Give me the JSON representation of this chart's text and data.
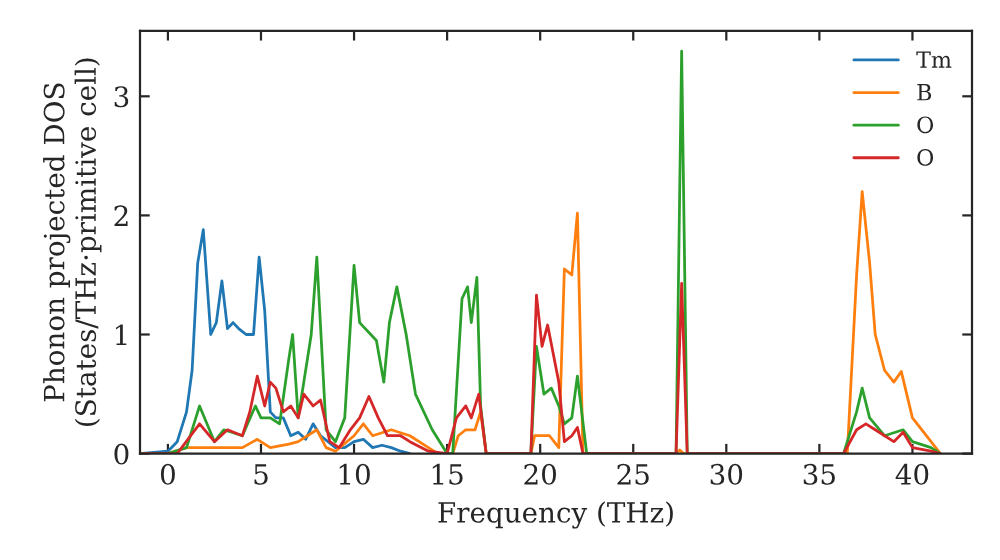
{
  "chart_data": {
    "type": "line",
    "xlabel": "Frequency (THz)",
    "ylabel": "Phonon projected DOS\n(States/THz·primitive cell)",
    "xlim": [
      -1.5,
      43.2
    ],
    "ylim": [
      0,
      3.55
    ],
    "xticks": [
      0,
      5,
      10,
      15,
      20,
      25,
      30,
      35,
      40
    ],
    "yticks": [
      0,
      1,
      2,
      3
    ],
    "grid": false,
    "legend": "top right",
    "marker": "none",
    "line_style": "solid",
    "series": [
      {
        "name": "Tm",
        "color": "#1f77b4",
        "x": [
          -1.5,
          0,
          0.5,
          1,
          1.3,
          1.6,
          1.9,
          2.3,
          2.6,
          2.9,
          3.2,
          3.5,
          3.8,
          4.2,
          4.6,
          4.9,
          5.2,
          5.5,
          5.8,
          6.2,
          6.6,
          7,
          7.4,
          7.8,
          8.2,
          8.6,
          9,
          9.5,
          10,
          10.5,
          11,
          11.5,
          12,
          12.5,
          13
        ],
        "values": [
          0,
          0.02,
          0.1,
          0.35,
          0.7,
          1.6,
          1.88,
          1.0,
          1.1,
          1.45,
          1.05,
          1.1,
          1.05,
          1.0,
          1.0,
          1.65,
          1.2,
          0.35,
          0.3,
          0.3,
          0.15,
          0.18,
          0.12,
          0.25,
          0.15,
          0.1,
          0.05,
          0.05,
          0.1,
          0.12,
          0.05,
          0.07,
          0.05,
          0.02,
          0
        ]
      },
      {
        "name": "B",
        "color": "#ff7f0e",
        "x": [
          -1.5,
          0,
          1,
          2,
          3,
          4,
          4.8,
          5.5,
          6.5,
          7,
          8,
          8.5,
          9,
          10,
          10.5,
          11,
          12,
          13,
          14,
          14.5,
          15.3,
          15.6,
          16,
          16.5,
          16.8,
          17.1,
          19.5,
          19.7,
          20.5,
          21,
          21.3,
          21.7,
          22,
          22.3,
          27.3,
          27.5,
          27.7,
          36.5,
          37,
          37.3,
          37.7,
          38,
          38.5,
          39,
          39.4,
          40,
          41,
          41.5
        ],
        "values": [
          0,
          0,
          0.05,
          0.05,
          0.05,
          0.05,
          0.12,
          0.05,
          0.08,
          0.1,
          0.2,
          0.05,
          0.02,
          0.15,
          0.25,
          0.15,
          0.2,
          0.15,
          0.05,
          0,
          0,
          0.15,
          0.2,
          0.2,
          0.35,
          0,
          0,
          0.15,
          0.15,
          0.05,
          1.55,
          1.5,
          2.02,
          0,
          0,
          0.03,
          0,
          0,
          1.5,
          2.2,
          1.6,
          1.0,
          0.7,
          0.6,
          0.69,
          0.3,
          0.1,
          0
        ]
      },
      {
        "name": "O",
        "color": "#2ca02c",
        "x": [
          -1.5,
          0,
          1,
          1.7,
          2.5,
          3,
          4,
          4.7,
          5,
          5.5,
          6,
          6.5,
          6.7,
          7,
          7.7,
          8.0,
          8.5,
          9,
          9.5,
          10.0,
          10.3,
          11.2,
          11.6,
          11.9,
          12.3,
          12.8,
          13.3,
          14.2,
          15,
          15.3,
          15.8,
          16.1,
          16.3,
          16.6,
          16.8,
          17.1,
          19.5,
          19.8,
          20.2,
          20.6,
          21,
          21.3,
          21.7,
          22,
          22.5,
          27.3,
          27.6,
          27.9,
          36.3,
          37,
          37.3,
          37.7,
          38.5,
          39.5,
          40,
          41,
          41.5
        ],
        "values": [
          0,
          0,
          0.05,
          0.4,
          0.1,
          0.2,
          0.15,
          0.4,
          0.3,
          0.3,
          0.25,
          0.8,
          1.0,
          0.3,
          1.0,
          1.65,
          0.2,
          0.1,
          0.3,
          1.58,
          1.1,
          0.95,
          0.6,
          1.1,
          1.4,
          1.0,
          0.5,
          0.2,
          0,
          0,
          1.3,
          1.4,
          1.1,
          1.48,
          0.4,
          0,
          0,
          0.9,
          0.5,
          0.55,
          0.4,
          0.25,
          0.3,
          0.65,
          0,
          0,
          3.38,
          0,
          0,
          0.35,
          0.55,
          0.3,
          0.15,
          0.2,
          0.1,
          0.05,
          0
        ]
      },
      {
        "name": "O",
        "color": "#d62728",
        "x": [
          -1.5,
          0.5,
          1.7,
          2.5,
          3.2,
          4,
          4.4,
          4.8,
          5.2,
          5.5,
          5.8,
          6.2,
          6.6,
          7,
          7.3,
          7.8,
          8.2,
          8.7,
          9.2,
          9.8,
          10.3,
          10.8,
          11.3,
          11.8,
          12.5,
          13,
          14,
          15,
          15.5,
          16,
          16.3,
          16.7,
          17.1,
          19.5,
          19.8,
          20.1,
          20.4,
          21,
          21.3,
          21.7,
          22,
          22.3,
          27.3,
          27.6,
          27.9,
          36.3,
          37,
          37.5,
          38,
          39,
          39.5,
          40,
          41,
          41.5
        ],
        "values": [
          0,
          0,
          0.25,
          0.1,
          0.2,
          0.15,
          0.35,
          0.65,
          0.4,
          0.6,
          0.55,
          0.35,
          0.4,
          0.3,
          0.5,
          0.4,
          0.45,
          0.1,
          0.05,
          0.2,
          0.3,
          0.48,
          0.3,
          0.15,
          0.15,
          0.1,
          0.02,
          0,
          0.3,
          0.4,
          0.3,
          0.5,
          0,
          0,
          1.33,
          0.9,
          1.08,
          0.6,
          0.1,
          0.15,
          0.22,
          0,
          0,
          1.43,
          0,
          0,
          0.2,
          0.25,
          0.2,
          0.1,
          0.18,
          0.05,
          0.02,
          0
        ]
      }
    ]
  }
}
